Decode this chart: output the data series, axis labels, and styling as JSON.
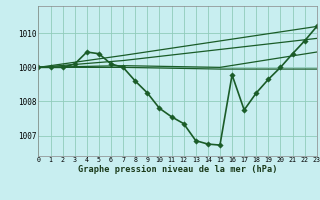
{
  "background_color": "#c8eef0",
  "grid_color": "#90ccbb",
  "line_color": "#1a5c28",
  "title": "Graphe pression niveau de la mer (hPa)",
  "xlim": [
    0,
    23
  ],
  "ylim": [
    1006.4,
    1010.8
  ],
  "yticks": [
    1007,
    1008,
    1009,
    1010
  ],
  "series": [
    {
      "x": [
        0,
        1,
        2,
        3,
        4,
        5,
        6,
        7,
        8,
        9,
        10,
        11,
        12,
        13,
        14,
        15,
        16,
        17,
        18,
        19,
        20,
        21,
        22,
        23
      ],
      "y": [
        1009.0,
        1009.0,
        1009.0,
        1009.1,
        1009.45,
        1009.4,
        1009.1,
        1009.0,
        1008.6,
        1008.25,
        1007.8,
        1007.55,
        1007.35,
        1006.85,
        1006.75,
        1006.72,
        1008.78,
        1007.75,
        1008.25,
        1008.65,
        1009.0,
        1009.4,
        1009.78,
        1010.2
      ],
      "markersize": 2.8,
      "linewidth": 1.2,
      "has_marker": true
    },
    {
      "x": [
        0,
        7,
        23
      ],
      "y": [
        1009.0,
        1009.35,
        1010.2
      ],
      "markersize": 0,
      "linewidth": 0.9,
      "has_marker": false
    },
    {
      "x": [
        0,
        7,
        23
      ],
      "y": [
        1009.0,
        1009.2,
        1009.85
      ],
      "markersize": 0,
      "linewidth": 0.9,
      "has_marker": false
    },
    {
      "x": [
        0,
        7,
        15,
        23
      ],
      "y": [
        1009.0,
        1009.05,
        1009.0,
        1009.45
      ],
      "markersize": 0,
      "linewidth": 0.9,
      "has_marker": false
    },
    {
      "x": [
        0,
        7,
        15,
        23
      ],
      "y": [
        1009.0,
        1009.0,
        1008.95,
        1008.95
      ],
      "markersize": 0,
      "linewidth": 0.9,
      "has_marker": false
    }
  ]
}
